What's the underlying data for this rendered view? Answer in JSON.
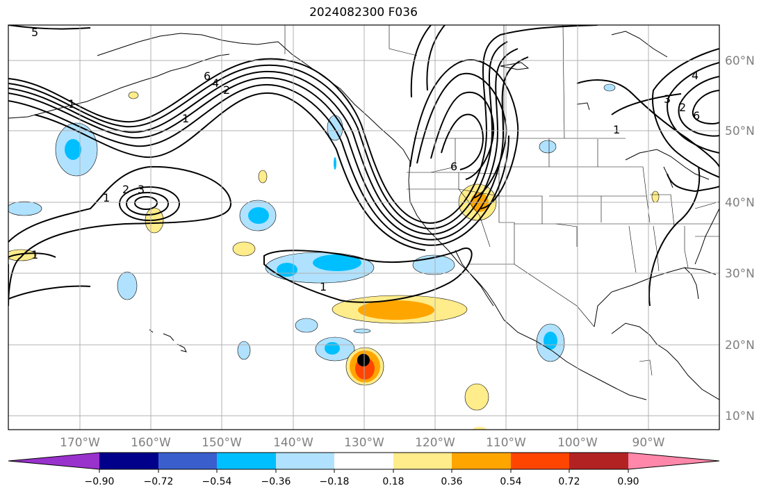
{
  "title": "2024082300 F036",
  "map": {
    "lat_ticks": [
      "60°N",
      "50°N",
      "40°N",
      "30°N",
      "20°N",
      "10°N"
    ],
    "lon_ticks": [
      "170°W",
      "160°W",
      "150°W",
      "140°W",
      "130°W",
      "120°W",
      "110°W",
      "100°W",
      "90°W"
    ],
    "contour_labels": [
      "5",
      "6",
      "4",
      "2",
      "1",
      "1",
      "1",
      "2",
      "3",
      "1",
      "1",
      "6",
      "1",
      "3",
      "2",
      "6",
      "4"
    ],
    "marker": "black-dot"
  },
  "colorbar": {
    "ticks": [
      "−0.90",
      "−0.72",
      "−0.54",
      "−0.36",
      "−0.18",
      "0.18",
      "0.36",
      "0.54",
      "0.72",
      "0.90"
    ],
    "colors": [
      "#9932CC",
      "#00008B",
      "#3A5FCD",
      "#00BFFF",
      "#B0E2FF",
      "#FFFFFF",
      "#FFEC8B",
      "#FFA500",
      "#FF4500",
      "#B22222",
      "#FF88AA"
    ]
  }
}
